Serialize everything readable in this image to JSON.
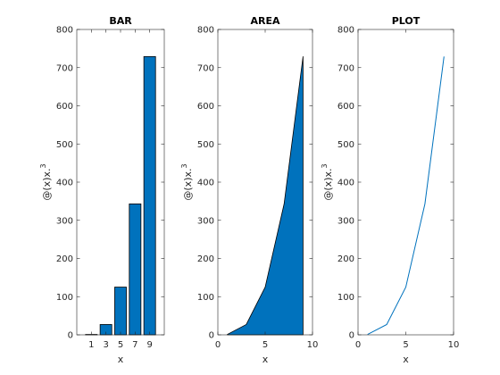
{
  "colors": {
    "fill": "#0072BD",
    "line": "#0072BD",
    "axis": "#262626",
    "bg": "#ffffff"
  },
  "chart_data": [
    {
      "type": "bar",
      "title": "BAR",
      "xlabel": "x",
      "ylabel_base": "@(x)x.",
      "ylabel_sup": "3",
      "categories": [
        "1",
        "3",
        "5",
        "7",
        "9"
      ],
      "x": [
        1,
        3,
        5,
        7,
        9
      ],
      "values": [
        1,
        27,
        125,
        343,
        729
      ],
      "xlim": [
        -1,
        11
      ],
      "ylim": [
        0,
        800
      ],
      "yticks": [
        0,
        100,
        200,
        300,
        400,
        500,
        600,
        700,
        800
      ],
      "xticks": [
        1,
        3,
        5,
        7,
        9
      ],
      "ytick_labels": [
        "0",
        "100",
        "200",
        "300",
        "400",
        "500",
        "600",
        "700",
        "800"
      ],
      "xtick_labels": [
        "1",
        "3",
        "5",
        "7",
        "9"
      ],
      "grid": false
    },
    {
      "type": "area",
      "title": "AREA",
      "xlabel": "x",
      "ylabel_base": "@(x)x.",
      "ylabel_sup": "3",
      "x": [
        1,
        3,
        5,
        7,
        9
      ],
      "values": [
        1,
        27,
        125,
        343,
        729
      ],
      "xlim": [
        0,
        10
      ],
      "ylim": [
        0,
        800
      ],
      "yticks": [
        0,
        100,
        200,
        300,
        400,
        500,
        600,
        700,
        800
      ],
      "xticks": [
        0,
        5,
        10
      ],
      "ytick_labels": [
        "0",
        "100",
        "200",
        "300",
        "400",
        "500",
        "600",
        "700",
        "800"
      ],
      "xtick_labels": [
        "0",
        "5",
        "10"
      ],
      "grid": false
    },
    {
      "type": "line",
      "title": "PLOT",
      "xlabel": "x",
      "ylabel_base": "@(x)x.",
      "ylabel_sup": "3",
      "x": [
        1,
        3,
        5,
        7,
        9
      ],
      "values": [
        1,
        27,
        125,
        343,
        729
      ],
      "xlim": [
        0,
        10
      ],
      "ylim": [
        0,
        800
      ],
      "yticks": [
        0,
        100,
        200,
        300,
        400,
        500,
        600,
        700,
        800
      ],
      "xticks": [
        0,
        5,
        10
      ],
      "ytick_labels": [
        "0",
        "100",
        "200",
        "300",
        "400",
        "500",
        "600",
        "700",
        "800"
      ],
      "xtick_labels": [
        "0",
        "5",
        "10"
      ],
      "grid": false
    }
  ]
}
